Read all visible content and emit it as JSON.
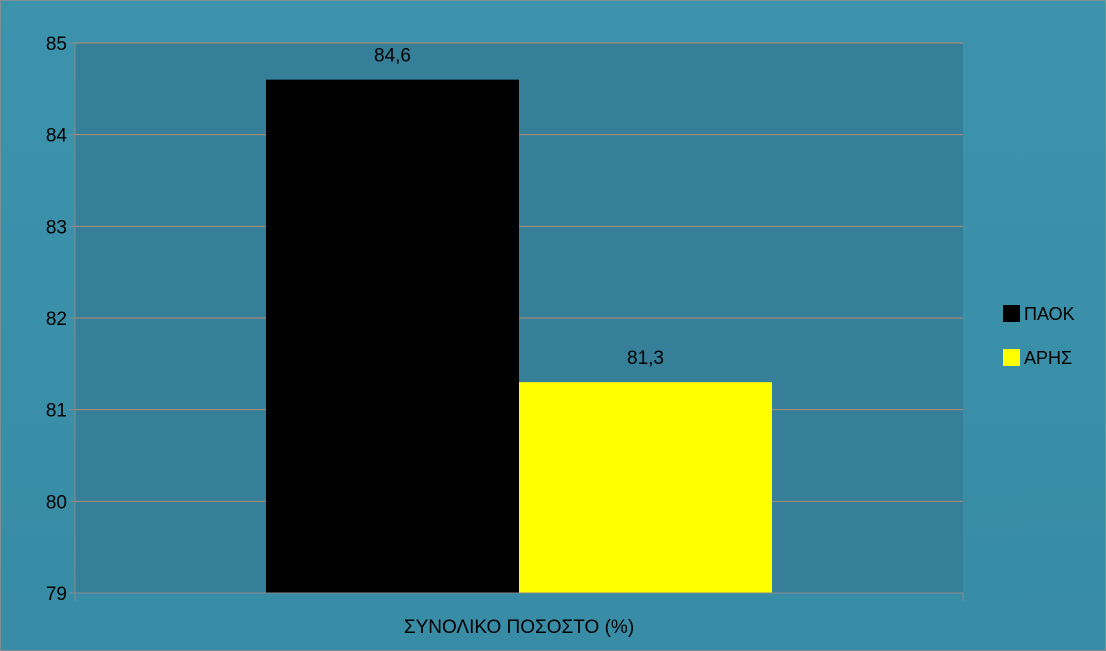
{
  "chart_data": {
    "type": "bar",
    "categories": [
      "ΣΥΝΟΛΙΚΟ ΠΟΣΟΣΤΟ (%)"
    ],
    "series": [
      {
        "name": "ΠΑΟΚ",
        "values": [
          84.6
        ],
        "value_labels": [
          "84,6"
        ],
        "color": "#000000"
      },
      {
        "name": "ΑΡΗΣ",
        "values": [
          81.3
        ],
        "value_labels": [
          "81,3"
        ],
        "color": "#ffff00"
      }
    ],
    "ylim": [
      79,
      85
    ],
    "y_ticks": [
      79,
      80,
      81,
      82,
      83,
      84,
      85
    ],
    "y_tick_labels": [
      "79",
      "80",
      "81",
      "82",
      "83",
      "84",
      "85"
    ],
    "grid": true,
    "legend_position": "right",
    "colors": {
      "background": "#3a8fa8",
      "plot_area": "#357f98",
      "gridline": "#b58d70",
      "axis": "#8a8a8a"
    }
  }
}
